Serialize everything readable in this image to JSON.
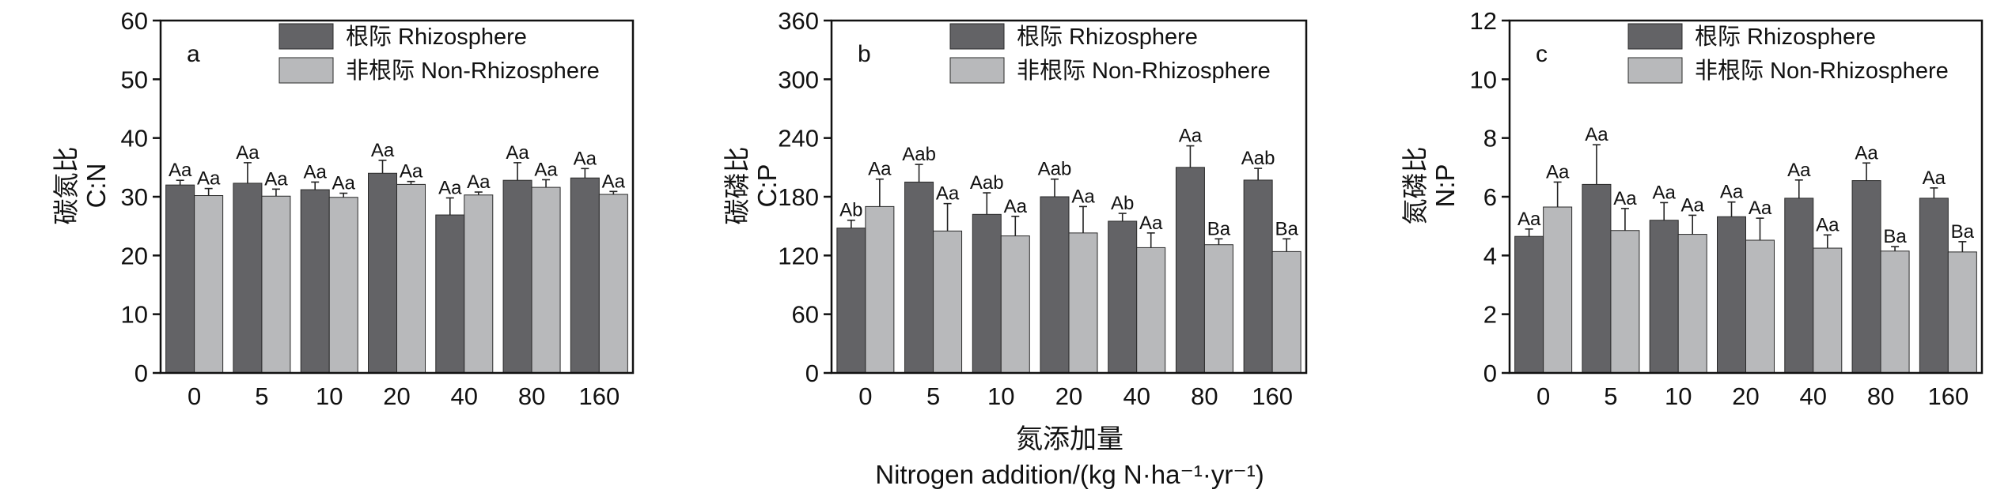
{
  "figure": {
    "xlabel_cn": "氮添加量",
    "xlabel_en": "Nitrogen addition/(kg N·ha⁻¹·yr⁻¹)"
  },
  "colors": {
    "rhizosphere": "#636366",
    "non_rhizosphere": "#b8b9bb",
    "axis": "#111111"
  },
  "chart_data": [
    {
      "type": "bar",
      "panel_letter": "a",
      "ylabel_cn": "碳氮比",
      "ylabel_en": "C:N",
      "categories": [
        "0",
        "5",
        "10",
        "20",
        "40",
        "80",
        "160"
      ],
      "ylim": [
        0,
        60
      ],
      "yticks": [
        "0",
        "10",
        "20",
        "30",
        "40",
        "50",
        "60"
      ],
      "legend": [
        "根际 Rhizosphere",
        "非根际 Non-Rhizosphere"
      ],
      "legend_position": "top-right",
      "grid": false,
      "series": [
        {
          "name": "根际 Rhizosphere",
          "values": [
            32.0,
            32.3,
            31.2,
            34.0,
            26.9,
            32.8,
            33.2
          ],
          "errors": [
            0.8,
            3.5,
            1.3,
            2.2,
            2.9,
            3.0,
            1.6
          ],
          "labels": [
            "Aa",
            "Aa",
            "Aa",
            "Aa",
            "Aa",
            "Aa",
            "Aa"
          ]
        },
        {
          "name": "非根际 Non-Rhizosphere",
          "values": [
            30.2,
            30.1,
            29.9,
            32.1,
            30.3,
            31.6,
            30.4
          ],
          "errors": [
            1.2,
            1.2,
            0.7,
            0.5,
            0.5,
            1.3,
            0.5
          ],
          "labels": [
            "Aa",
            "Aa",
            "Aa",
            "Aa",
            "Aa",
            "Aa",
            "Aa"
          ]
        }
      ]
    },
    {
      "type": "bar",
      "panel_letter": "b",
      "ylabel_cn": "碳磷比",
      "ylabel_en": "C:P",
      "categories": [
        "0",
        "5",
        "10",
        "20",
        "40",
        "80",
        "160"
      ],
      "ylim": [
        0,
        360
      ],
      "yticks": [
        "0",
        "60",
        "120",
        "180",
        "240",
        "300",
        "360"
      ],
      "legend": [
        "根际 Rhizosphere",
        "非根际 Non-Rhizosphere"
      ],
      "legend_position": "top-right",
      "grid": false,
      "series": [
        {
          "name": "根际 Rhizosphere",
          "values": [
            148,
            195,
            162,
            180,
            155,
            210,
            197
          ],
          "errors": [
            8,
            18,
            22,
            18,
            8,
            22,
            12
          ],
          "labels": [
            "Ab",
            "Aab",
            "Aab",
            "Aab",
            "Ab",
            "Aa",
            "Aab"
          ]
        },
        {
          "name": "非根际 Non-Rhizosphere",
          "values": [
            170,
            145,
            140,
            143,
            128,
            131,
            124
          ],
          "errors": [
            28,
            28,
            20,
            27,
            15,
            6,
            13
          ],
          "labels": [
            "Aa",
            "Aa",
            "Aa",
            "Aa",
            "Aa",
            "Ba",
            "Ba"
          ]
        }
      ]
    },
    {
      "type": "bar",
      "panel_letter": "c",
      "ylabel_cn": "氮磷比",
      "ylabel_en": "N:P",
      "categories": [
        "0",
        "5",
        "10",
        "20",
        "40",
        "80",
        "160"
      ],
      "ylim": [
        0,
        12
      ],
      "yticks": [
        "0",
        "2",
        "4",
        "6",
        "8",
        "10",
        "12"
      ],
      "legend": [
        "根际 Rhizosphere",
        "非根际 Non-Rhizosphere"
      ],
      "legend_position": "top-right",
      "grid": false,
      "series": [
        {
          "name": "根际 Rhizosphere",
          "values": [
            4.65,
            6.42,
            5.2,
            5.32,
            5.95,
            6.55,
            5.95
          ],
          "errors": [
            0.25,
            1.35,
            0.6,
            0.5,
            0.62,
            0.6,
            0.35
          ],
          "labels": [
            "Aa",
            "Aa",
            "Aa",
            "Aa",
            "Aa",
            "Aa",
            "Aa"
          ]
        },
        {
          "name": "非根际 Non-Rhizosphere",
          "values": [
            5.65,
            4.85,
            4.72,
            4.52,
            4.25,
            4.15,
            4.12
          ],
          "errors": [
            0.85,
            0.75,
            0.65,
            0.75,
            0.45,
            0.15,
            0.35
          ],
          "labels": [
            "Aa",
            "Aa",
            "Aa",
            "Aa",
            "Aa",
            "Ba",
            "Ba"
          ]
        }
      ]
    }
  ]
}
